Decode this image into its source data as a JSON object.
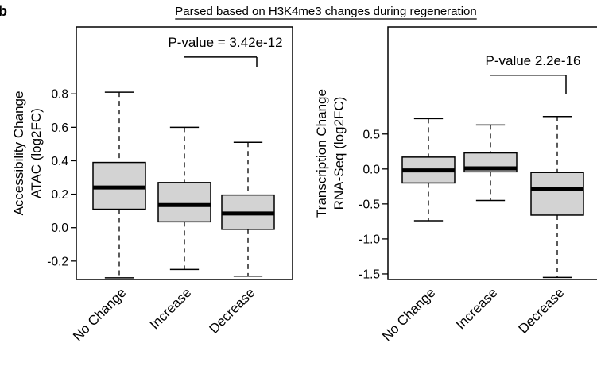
{
  "figure": {
    "panel_letter": "b",
    "title": "Parsed based on H3K4me3 changes during regeneration"
  },
  "chart_data": [
    {
      "type": "box",
      "ylabel_line1": "Accessibility Change",
      "ylabel_line2": "ATAC (log2FC)",
      "categories": [
        "No Change",
        "Increase",
        "Decrease"
      ],
      "yticks": [
        {
          "value": 0.8,
          "label": "0.8"
        },
        {
          "value": 0.6,
          "label": "0.6"
        },
        {
          "value": 0.4,
          "label": "0.4"
        },
        {
          "value": 0.2,
          "label": "0.2"
        },
        {
          "value": 0.0,
          "label": "0.0"
        },
        {
          "value": -0.2,
          "label": "-0.2"
        }
      ],
      "ylim": [
        -0.31,
        1.2
      ],
      "boxes": [
        {
          "category": "No Change",
          "whisker_low": -0.3,
          "q1": 0.11,
          "median": 0.24,
          "q3": 0.39,
          "whisker_high": 0.81
        },
        {
          "category": "Increase",
          "whisker_low": -0.25,
          "q1": 0.035,
          "median": 0.135,
          "q3": 0.27,
          "whisker_high": 0.6
        },
        {
          "category": "Decrease",
          "whisker_low": -0.29,
          "q1": -0.01,
          "median": 0.085,
          "q3": 0.195,
          "whisker_high": 0.51
        }
      ],
      "annotation": {
        "text": "P-value = 3.42e-12",
        "from_category": "Increase",
        "to_category": "Decrease",
        "bracket_y": 1.02,
        "drop_to_y": 0.96
      },
      "box_fill": "#d3d3d3",
      "grid": false
    },
    {
      "type": "box",
      "ylabel_line1": "Transcription Change",
      "ylabel_line2": "RNA-Seq (log2FC)",
      "categories": [
        "No Change",
        "Increase",
        "Decrease"
      ],
      "yticks": [
        {
          "value": 0.5,
          "label": "0.5"
        },
        {
          "value": 0.0,
          "label": "0.0"
        },
        {
          "value": -0.5,
          "label": "-0.5"
        },
        {
          "value": -1.0,
          "label": "-1.0"
        },
        {
          "value": -1.5,
          "label": "-1.5"
        }
      ],
      "ylim": [
        -1.58,
        2.03
      ],
      "boxes": [
        {
          "category": "No Change",
          "whisker_low": -0.74,
          "q1": -0.2,
          "median": -0.02,
          "q3": 0.17,
          "whisker_high": 0.72
        },
        {
          "category": "Increase",
          "whisker_low": -0.45,
          "q1": -0.04,
          "median": 0.01,
          "q3": 0.23,
          "whisker_high": 0.63
        },
        {
          "category": "Decrease",
          "whisker_low": -1.55,
          "q1": -0.66,
          "median": -0.28,
          "q3": -0.05,
          "whisker_high": 0.75
        }
      ],
      "annotation": {
        "text": "P-value 2.2e-16",
        "from_category": "Increase",
        "to_category": "Decrease",
        "bracket_y": 1.34,
        "drop_to_y": 1.07
      },
      "box_fill": "#d3d3d3",
      "grid": false
    }
  ]
}
